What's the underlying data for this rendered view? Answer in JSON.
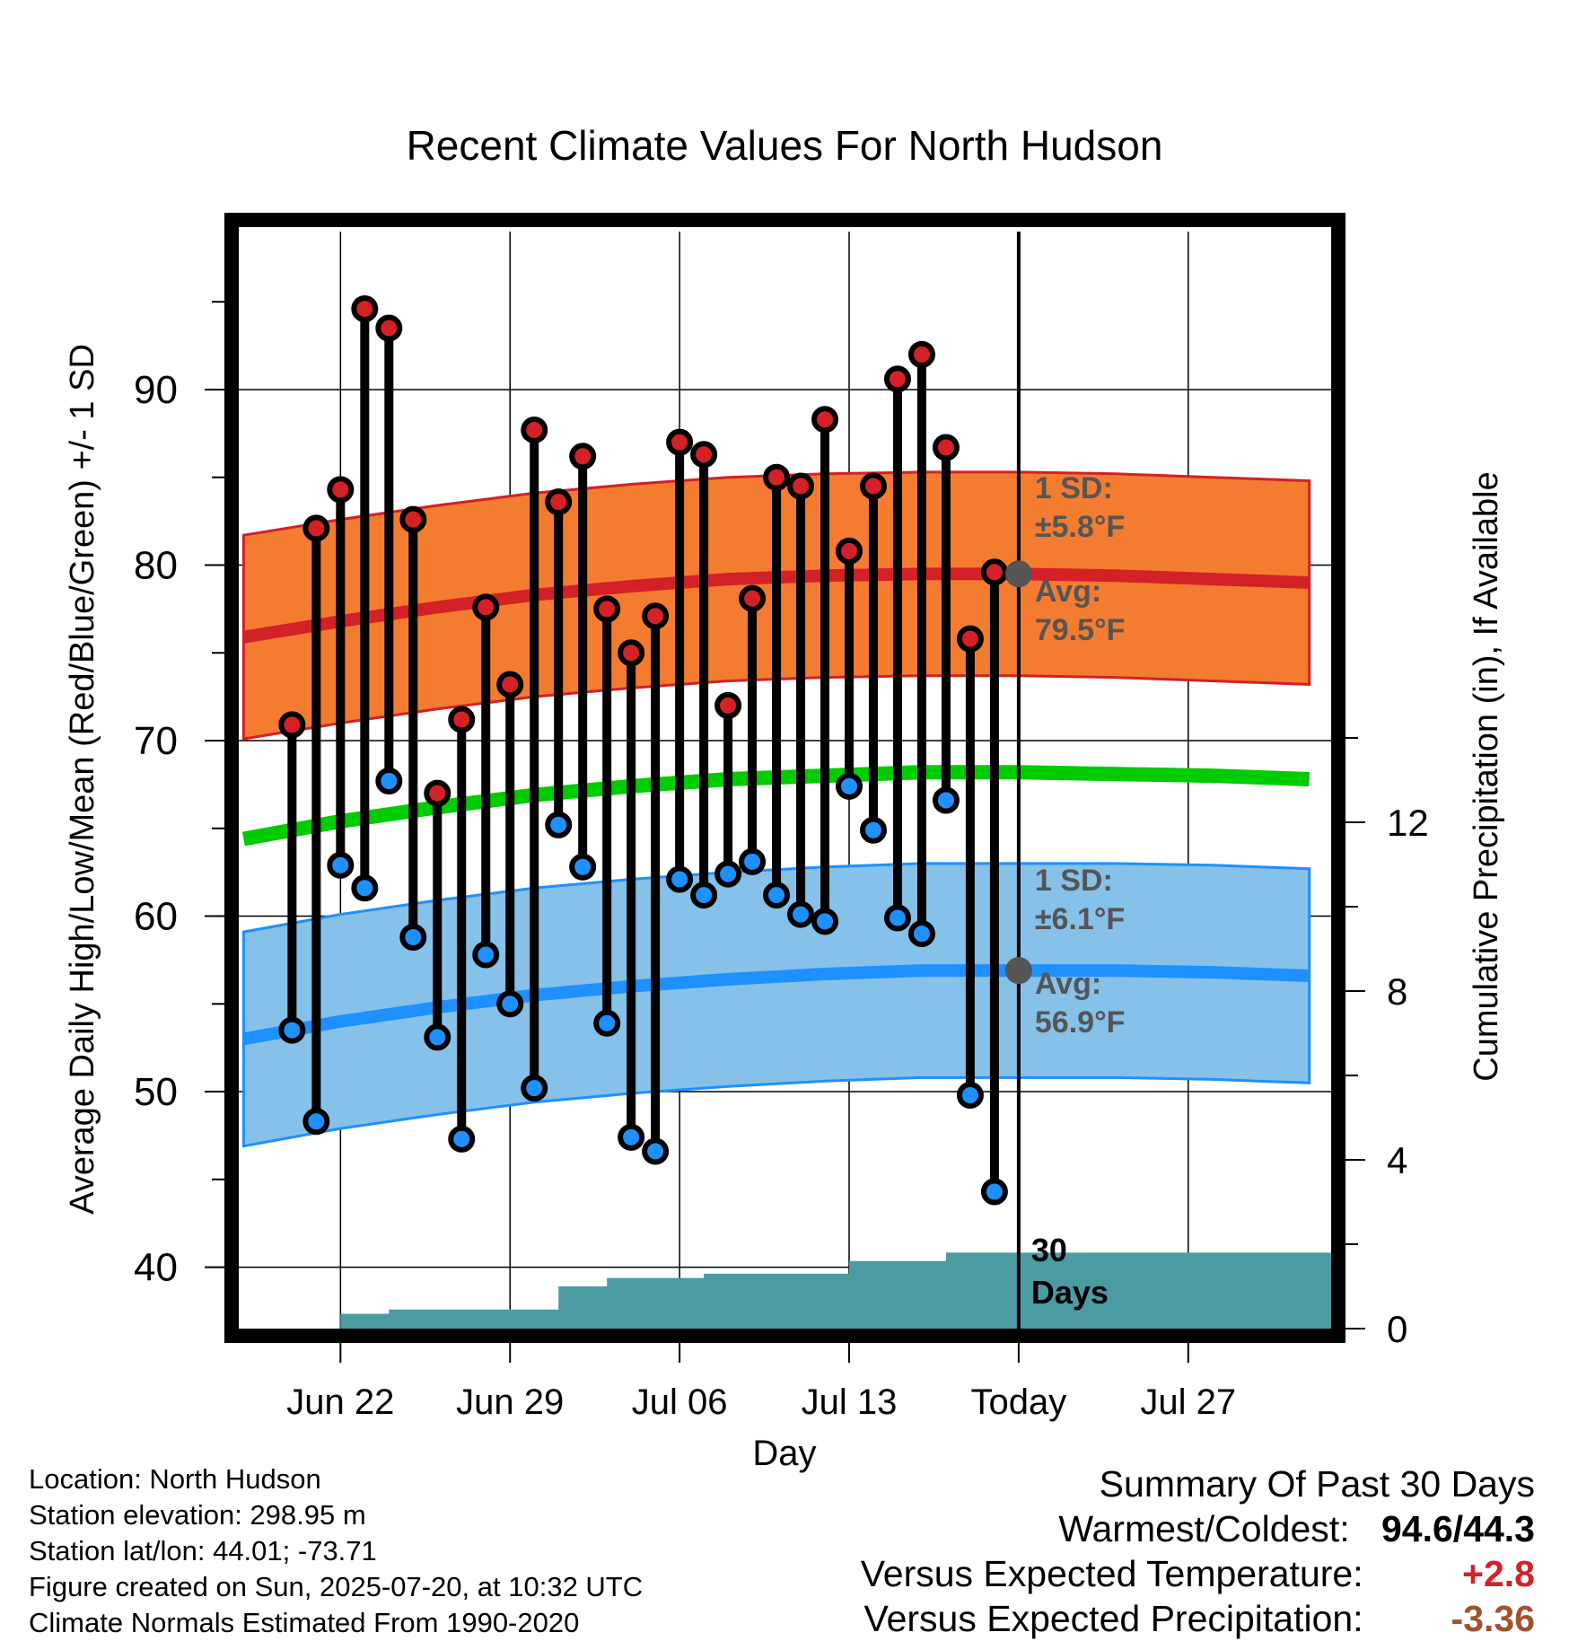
{
  "chart_data": {
    "type": "line",
    "title": "Recent Climate Values For North Hudson",
    "xlabel": "Day",
    "ylabel": "Average Daily High/Low/Mean (Red/Blue/Green) +/- 1 SD",
    "y2label": "Cumulative Precipitation (in), If Available",
    "ylim": [
      36.5,
      99
    ],
    "y2lim": [
      0,
      26
    ],
    "xlim": [
      -32.2,
      12.9
    ],
    "x_unit": "days relative to Today (Jul 20)",
    "x_ticks": [
      {
        "x": -28,
        "label": "Jun 22"
      },
      {
        "x": -21,
        "label": "Jun 29"
      },
      {
        "x": -14,
        "label": "Jul 06"
      },
      {
        "x": -7,
        "label": "Jul 13"
      },
      {
        "x": 0,
        "label": "Today"
      },
      {
        "x": 7,
        "label": "Jul 27"
      }
    ],
    "y_ticks": [
      40,
      50,
      60,
      70,
      80,
      90
    ],
    "y2_ticks": [
      0,
      4,
      8,
      12
    ],
    "today_marker": {
      "label_line1": "30",
      "label_line2": "Days"
    },
    "normals": {
      "x": [
        -32,
        -28,
        -24,
        -20,
        -16,
        -12,
        -8,
        -4,
        0,
        4,
        8,
        12
      ],
      "high_avg": [
        75.9,
        76.8,
        77.6,
        78.3,
        78.8,
        79.2,
        79.4,
        79.5,
        79.5,
        79.4,
        79.2,
        79.0
      ],
      "high_sd": 5.8,
      "low_avg": [
        53.0,
        54.0,
        54.8,
        55.5,
        56.0,
        56.4,
        56.7,
        56.9,
        56.9,
        56.9,
        56.8,
        56.6
      ],
      "low_sd": 6.1,
      "mean_avg": [
        64.4,
        65.4,
        66.2,
        66.9,
        67.4,
        67.8,
        68.0,
        68.2,
        68.2,
        68.1,
        68.0,
        67.8
      ]
    },
    "series": [
      {
        "name": "High",
        "color": "#d42027",
        "x": [
          -30,
          -29,
          -28,
          -27,
          -26,
          -25,
          -24,
          -23,
          -22,
          -21,
          -20,
          -19,
          -18,
          -17,
          -16,
          -15,
          -14,
          -13,
          -12,
          -11,
          -10,
          -9,
          -8,
          -7,
          -6,
          -5,
          -4,
          -3,
          -2,
          -1
        ],
        "values": [
          70.9,
          82.1,
          84.3,
          94.6,
          93.5,
          82.6,
          67.0,
          71.2,
          77.6,
          73.2,
          87.7,
          83.6,
          86.2,
          77.5,
          75.0,
          77.1,
          87.0,
          86.3,
          72.0,
          78.1,
          85.0,
          84.5,
          88.3,
          80.8,
          84.5,
          90.6,
          92.0,
          86.7,
          75.8,
          79.6
        ]
      },
      {
        "name": "Low",
        "color": "#1e90ff",
        "x": [
          -30,
          -29,
          -28,
          -27,
          -26,
          -25,
          -24,
          -23,
          -22,
          -21,
          -20,
          -19,
          -18,
          -17,
          -16,
          -15,
          -14,
          -13,
          -12,
          -11,
          -10,
          -9,
          -8,
          -7,
          -6,
          -5,
          -4,
          -3,
          -2,
          -1
        ],
        "values": [
          53.5,
          48.3,
          62.9,
          61.6,
          67.7,
          58.8,
          53.1,
          47.3,
          57.8,
          55.0,
          50.2,
          65.2,
          62.8,
          53.9,
          47.4,
          46.6,
          62.1,
          61.2,
          62.4,
          63.1,
          61.2,
          60.1,
          59.7,
          67.4,
          64.9,
          59.9,
          59.0,
          66.6,
          49.8,
          44.3
        ]
      },
      {
        "name": "Cumulative Precipitation",
        "color": "#4a9ba2",
        "x": [
          -32.2,
          -29.5,
          -28,
          -27,
          -26,
          -25,
          -24,
          -23,
          -22,
          -21,
          -20,
          -19,
          -18,
          -17,
          -16,
          -15,
          -14,
          -13,
          -12,
          -11,
          -10,
          -9,
          -8,
          -7,
          -6,
          -5,
          -4,
          -3,
          -2,
          -1,
          0,
          12.9
        ],
        "values": [
          0,
          0,
          0.35,
          0.35,
          0.45,
          0.45,
          0.45,
          0.45,
          0.45,
          0.45,
          0.45,
          1.0,
          1.0,
          1.2,
          1.2,
          1.2,
          1.2,
          1.3,
          1.3,
          1.3,
          1.3,
          1.3,
          1.3,
          1.6,
          1.6,
          1.6,
          1.6,
          1.8,
          1.8,
          1.8,
          1.8,
          1.8
        ]
      }
    ],
    "annotations": {
      "high": {
        "sd_label": "1 SD:",
        "sd_value": "±5.8°F",
        "avg_label": "Avg:",
        "avg_value": "79.5°F",
        "avg": 79.5
      },
      "low": {
        "sd_label": "1 SD:",
        "sd_value": "±6.1°F",
        "avg_label": "Avg:",
        "avg_value": "56.9°F",
        "avg": 56.9
      }
    },
    "colors": {
      "high_band": "#f47c30",
      "high_line": "#d42027",
      "low_band": "#85c1e9",
      "low_line": "#1e90ff",
      "mean_line": "#00cc00",
      "precip": "#4a9ba2",
      "annotation": "#555555"
    }
  },
  "footer": {
    "location": "Location: North Hudson",
    "elevation": "Station elevation: 298.95 m",
    "latlon": "Station lat/lon: 44.01; -73.71",
    "created": "Figure created on Sun, 2025-07-20, at 10:32 UTC",
    "normals": "Climate Normals Estimated From 1990-2020"
  },
  "summary": {
    "heading": "Summary Of Past 30 Days",
    "warmest_label": "Warmest/Coldest:",
    "warmest_value": "94.6/44.3",
    "temp_label": "Versus Expected Temperature:",
    "temp_value": "+2.8",
    "temp_color": "#d42027",
    "precip_label": "Versus Expected Precipitation:",
    "precip_value": "-3.36",
    "precip_color": "#a0522d"
  }
}
